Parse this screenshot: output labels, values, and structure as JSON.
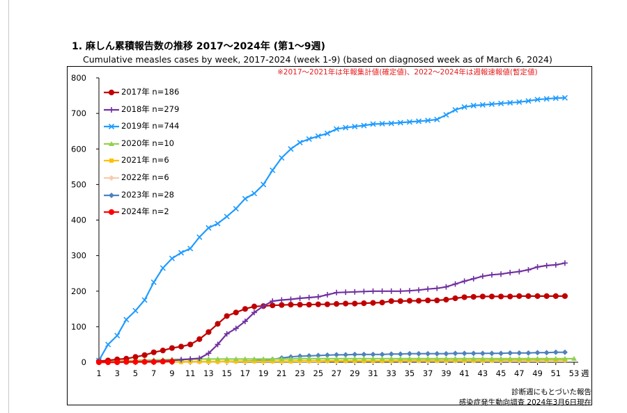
{
  "page": {
    "heading": "1. 麻しん累積報告数の推移  2017～2024年 (第1～9週)",
    "subheading": "Cumulative measles cases by week, 2017-2024 (week 1-9)  (based on diagnosed week as of March 6, 2024)",
    "note": "※2017～2021年は年報集計値(確定値)、2022～2024年は週報速報値(暫定値)",
    "footer_line1": "診断週にもとづいた報告",
    "footer_line2": "感染症発生動向調査  2024年3月6日現在"
  },
  "chart_data": {
    "type": "line",
    "title": "1. 麻しん累積報告数の推移  2017～2024年 (第1～9週)",
    "subtitle": "Cumulative measles cases by week, 2017-2024 (week 1-9)  (based on diagnosed week as of March 6, 2024)",
    "xlabel": "週",
    "ylabel": "",
    "xlim": [
      1,
      53
    ],
    "ylim": [
      0,
      800
    ],
    "x_ticks": [
      1,
      3,
      5,
      7,
      9,
      11,
      13,
      15,
      17,
      19,
      21,
      23,
      25,
      27,
      29,
      31,
      33,
      35,
      37,
      39,
      41,
      43,
      45,
      47,
      49,
      51,
      53
    ],
    "x_tick_labels": [
      "1",
      "3",
      "5",
      "7",
      "9",
      "11",
      "13",
      "15",
      "17",
      "19",
      "21",
      "23",
      "25",
      "27",
      "29",
      "31",
      "33",
      "35",
      "37",
      "39",
      "41",
      "43",
      "45",
      "47",
      "49",
      "51",
      "53"
    ],
    "y_ticks": [
      0,
      100,
      200,
      300,
      400,
      500,
      600,
      700,
      800
    ],
    "y_tick_labels": [
      "0",
      "100",
      "200",
      "300",
      "400",
      "500",
      "600",
      "700",
      "800"
    ],
    "grid": false,
    "legend_position": "top-left",
    "series": [
      {
        "name": "2017年 n=186",
        "color": "#c00000",
        "marker": "circle",
        "x": [
          1,
          2,
          3,
          4,
          5,
          6,
          7,
          8,
          9,
          10,
          11,
          12,
          13,
          14,
          15,
          16,
          17,
          18,
          19,
          20,
          21,
          22,
          23,
          24,
          25,
          26,
          27,
          28,
          29,
          30,
          31,
          32,
          33,
          34,
          35,
          36,
          37,
          38,
          39,
          40,
          41,
          42,
          43,
          44,
          45,
          46,
          47,
          48,
          49,
          50,
          51,
          52
        ],
        "y": [
          3,
          5,
          8,
          10,
          15,
          20,
          28,
          33,
          40,
          44,
          50,
          65,
          85,
          108,
          130,
          140,
          150,
          157,
          158,
          160,
          161,
          162,
          162,
          162,
          163,
          163,
          164,
          165,
          165,
          166,
          167,
          168,
          172,
          172,
          173,
          173,
          174,
          174,
          176,
          180,
          183,
          184,
          185,
          185,
          185,
          185,
          186,
          186,
          186,
          186,
          186,
          186
        ]
      },
      {
        "name": "2018年 n=279",
        "color": "#7030a0",
        "marker": "plus",
        "x": [
          1,
          2,
          3,
          4,
          5,
          6,
          7,
          8,
          9,
          10,
          11,
          12,
          13,
          14,
          15,
          16,
          17,
          18,
          19,
          20,
          21,
          22,
          23,
          24,
          25,
          26,
          27,
          28,
          29,
          30,
          31,
          32,
          33,
          34,
          35,
          36,
          37,
          38,
          39,
          40,
          41,
          42,
          43,
          44,
          45,
          46,
          47,
          48,
          49,
          50,
          51,
          52
        ],
        "y": [
          0,
          0,
          0,
          1,
          1,
          2,
          3,
          4,
          5,
          7,
          9,
          11,
          25,
          50,
          80,
          95,
          115,
          140,
          158,
          172,
          175,
          177,
          180,
          182,
          184,
          190,
          196,
          197,
          198,
          199,
          200,
          200,
          200,
          200,
          201,
          203,
          206,
          208,
          212,
          220,
          228,
          235,
          242,
          246,
          248,
          252,
          255,
          260,
          268,
          272,
          274,
          279
        ]
      },
      {
        "name": "2019年 n=744",
        "color": "#1f9bff",
        "marker": "x",
        "x": [
          1,
          2,
          3,
          4,
          5,
          6,
          7,
          8,
          9,
          10,
          11,
          12,
          13,
          14,
          15,
          16,
          17,
          18,
          19,
          20,
          21,
          22,
          23,
          24,
          25,
          26,
          27,
          28,
          29,
          30,
          31,
          32,
          33,
          34,
          35,
          36,
          37,
          38,
          39,
          40,
          41,
          42,
          43,
          44,
          45,
          46,
          47,
          48,
          49,
          50,
          51,
          52
        ],
        "y": [
          5,
          50,
          75,
          120,
          145,
          175,
          225,
          265,
          292,
          308,
          320,
          352,
          378,
          390,
          410,
          432,
          460,
          475,
          500,
          540,
          575,
          600,
          618,
          628,
          636,
          644,
          656,
          660,
          663,
          666,
          670,
          671,
          672,
          674,
          676,
          678,
          680,
          683,
          696,
          710,
          718,
          722,
          724,
          726,
          728,
          730,
          732,
          735,
          739,
          741,
          743,
          744
        ]
      },
      {
        "name": "2020年 n=10",
        "color": "#92d050",
        "marker": "triangle",
        "x": [
          1,
          2,
          3,
          4,
          5,
          6,
          7,
          8,
          9,
          10,
          11,
          12,
          13,
          14,
          15,
          16,
          17,
          18,
          19,
          20,
          21,
          22,
          23,
          24,
          25,
          26,
          27,
          28,
          29,
          30,
          31,
          32,
          33,
          34,
          35,
          36,
          37,
          38,
          39,
          40,
          41,
          42,
          43,
          44,
          45,
          46,
          47,
          48,
          49,
          50,
          51,
          52,
          53
        ],
        "y": [
          1,
          2,
          3,
          4,
          5,
          6,
          6,
          7,
          8,
          8,
          9,
          9,
          9,
          9,
          9,
          9,
          9,
          9,
          9,
          9,
          9,
          9,
          10,
          10,
          10,
          10,
          10,
          10,
          10,
          10,
          10,
          10,
          10,
          10,
          10,
          10,
          10,
          10,
          10,
          10,
          10,
          10,
          10,
          10,
          10,
          10,
          10,
          10,
          10,
          10,
          10,
          10,
          10
        ]
      },
      {
        "name": "2021年 n=6",
        "color": "#ffc000",
        "marker": "square",
        "x": [
          1,
          2,
          3,
          4,
          5,
          6,
          7,
          8,
          9,
          10,
          11,
          12,
          13,
          14,
          15,
          16,
          17,
          18,
          19,
          20,
          21,
          22,
          23,
          24,
          25,
          26,
          27,
          28,
          29,
          30,
          31,
          32,
          33,
          34,
          35,
          36,
          37,
          38,
          39,
          40,
          41,
          42,
          43,
          44,
          45,
          46,
          47,
          48,
          49,
          50,
          51,
          52
        ],
        "y": [
          0,
          0,
          1,
          1,
          1,
          1,
          1,
          1,
          1,
          1,
          2,
          2,
          2,
          2,
          3,
          3,
          3,
          3,
          3,
          3,
          3,
          3,
          4,
          4,
          4,
          4,
          4,
          4,
          4,
          4,
          4,
          4,
          4,
          5,
          5,
          5,
          5,
          5,
          5,
          5,
          5,
          5,
          5,
          5,
          6,
          6,
          6,
          6,
          6,
          6,
          6,
          6
        ]
      },
      {
        "name": "2022年 n=6",
        "color": "#f8cbad",
        "marker": "diamond",
        "x": [
          1,
          2,
          3,
          4,
          5,
          6,
          7,
          8,
          9,
          10,
          11,
          12,
          13,
          14,
          15,
          16,
          17,
          18,
          19,
          20,
          21,
          22,
          23,
          24,
          25,
          26,
          27,
          28,
          29,
          30,
          31,
          32,
          33,
          34,
          35,
          36,
          37,
          38,
          39,
          40,
          41,
          42,
          43,
          44,
          45,
          46,
          47,
          48,
          49,
          50,
          51,
          52
        ],
        "y": [
          0,
          0,
          0,
          0,
          0,
          1,
          1,
          1,
          1,
          1,
          1,
          1,
          1,
          1,
          1,
          2,
          2,
          2,
          2,
          2,
          2,
          2,
          2,
          2,
          2,
          3,
          3,
          3,
          3,
          3,
          3,
          3,
          3,
          3,
          4,
          4,
          4,
          4,
          4,
          4,
          4,
          4,
          4,
          5,
          5,
          5,
          5,
          5,
          5,
          6,
          6,
          6
        ]
      },
      {
        "name": "2023年 n=28",
        "color": "#4f81bd",
        "marker": "diamond",
        "x": [
          10,
          11,
          12,
          13,
          14,
          15,
          16,
          17,
          18,
          19,
          20,
          21,
          22,
          23,
          24,
          25,
          26,
          27,
          28,
          29,
          30,
          31,
          32,
          33,
          34,
          35,
          36,
          37,
          38,
          39,
          40,
          41,
          42,
          43,
          44,
          45,
          46,
          47,
          48,
          49,
          50,
          51,
          52
        ],
        "y": [
          1,
          1,
          1,
          1,
          1,
          2,
          2,
          3,
          4,
          6,
          8,
          12,
          15,
          17,
          18,
          19,
          20,
          21,
          21,
          22,
          22,
          22,
          22,
          23,
          23,
          24,
          24,
          24,
          24,
          24,
          25,
          25,
          25,
          25,
          25,
          25,
          26,
          26,
          26,
          27,
          27,
          28,
          28
        ]
      },
      {
        "name": "2024年 n=2",
        "color": "#ff0000",
        "marker": "circle",
        "x": [
          1,
          2,
          3,
          4,
          5,
          6,
          7,
          8,
          9
        ],
        "y": [
          0,
          0,
          0,
          1,
          1,
          1,
          1,
          2,
          2
        ]
      }
    ]
  }
}
